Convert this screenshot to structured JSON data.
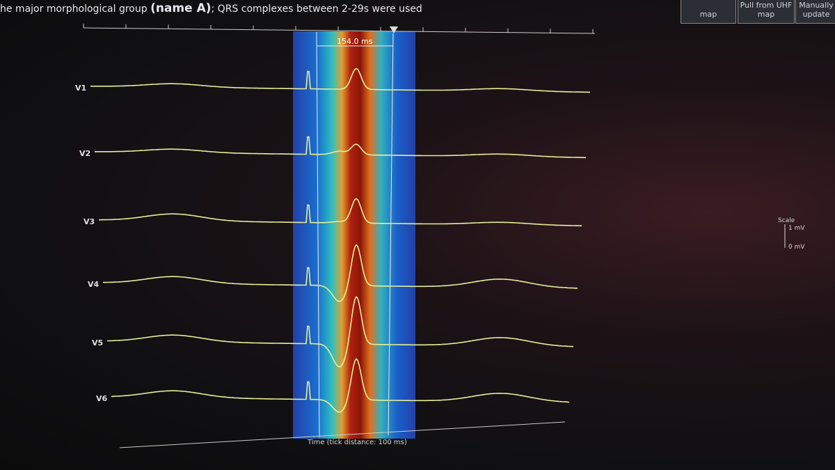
{
  "header": {
    "title_prefix": "he major morphological group",
    "title_bold": "(name A)",
    "title_suffix": "; QRS complexes between 2-29s were used"
  },
  "buttons": [
    {
      "label": "map"
    },
    {
      "label": "Pull from UHF map"
    },
    {
      "label": "Manually update"
    }
  ],
  "interval_label": "154.0 ms",
  "leads": [
    "V1",
    "V2",
    "V3",
    "V4",
    "V5",
    "V6"
  ],
  "scale": {
    "title": "Scale",
    "top": "1 mV",
    "bottom": "0 mV"
  },
  "time_axis_label": "Time (tick distance: 100 ms)"
}
